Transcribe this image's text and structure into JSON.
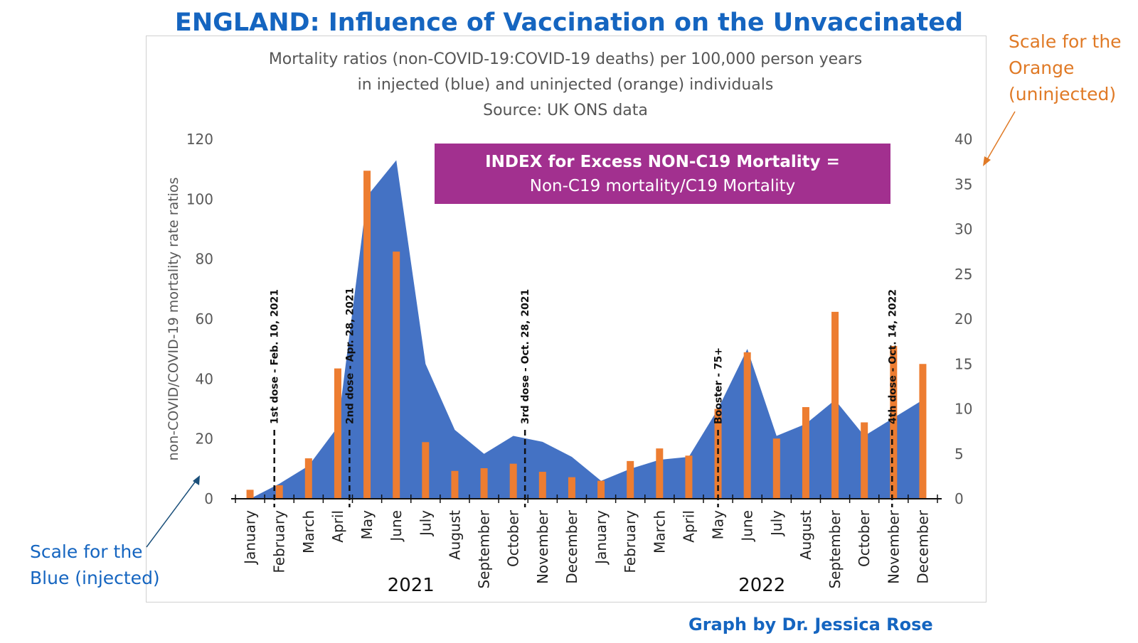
{
  "title": "ENGLAND: Influence of Vaccination on the Unvaccinated",
  "subtitle_lines": [
    "Mortality ratios (non-COVID-19:COVID-19 deaths) per 100,000 person years",
    "in injected (blue) and uninjected (orange) individuals",
    "Source: UK ONS data"
  ],
  "index_box": {
    "line1": "INDEX for Excess NON-C19 Mortality  =",
    "line2": "Non-C19 mortality/C19 Mortality",
    "color": "#a2308f"
  },
  "notes": {
    "orange_lines": [
      "Scale for the",
      "Orange",
      "(uninjected)"
    ],
    "blue_lines": [
      "Scale for the",
      "Blue (injected)"
    ]
  },
  "credit": "Graph by Dr. Jessica Rose",
  "chart_data": {
    "type": "area+bar",
    "categories": [
      "January",
      "February",
      "March",
      "April",
      "May",
      "June",
      "July",
      "August",
      "September",
      "October",
      "November",
      "December",
      "January",
      "February",
      "March",
      "April",
      "May",
      "June",
      "July",
      "August",
      "September",
      "October",
      "November",
      "December"
    ],
    "years": [
      {
        "label": "2021",
        "start": 0,
        "end": 11
      },
      {
        "label": "2022",
        "start": 12,
        "end": 23
      }
    ],
    "ylabel": "non-COVID/COVID-19 mortality rate ratios",
    "y_left": {
      "min": 0,
      "max": 120,
      "ticks": [
        0,
        20,
        40,
        60,
        80,
        100,
        120
      ]
    },
    "y_right": {
      "min": 0,
      "max": 40,
      "ticks": [
        0,
        5,
        10,
        15,
        20,
        25,
        30,
        35,
        40
      ]
    },
    "series": [
      {
        "name": "injected (blue)",
        "kind": "area",
        "axis": "left",
        "color": "#4472c4",
        "values": [
          0,
          5,
          11,
          24,
          101,
          113,
          45,
          23,
          15,
          21,
          19,
          14,
          6,
          10,
          13,
          14,
          30,
          50,
          21,
          25,
          33,
          21,
          27,
          33
        ]
      },
      {
        "name": "uninjected (orange)",
        "kind": "bar",
        "axis": "right",
        "color": "#ed7d31",
        "values": [
          1,
          1.5,
          4.5,
          14.5,
          36.5,
          27.5,
          6.3,
          3.1,
          3.4,
          3.9,
          3.0,
          2.4,
          2.0,
          4.2,
          5.6,
          4.8,
          10.0,
          16.3,
          6.7,
          10.2,
          20.8,
          8.5,
          17.0,
          15.0
        ]
      }
    ],
    "dose_markers": [
      {
        "label": "1st dose - Feb. 10, 2021",
        "position": 1.33
      },
      {
        "label": "2nd dose - Apr. 28, 2021",
        "position": 3.9
      },
      {
        "label": "3rd dose - Oct. 28, 2021",
        "position": 9.9
      },
      {
        "label": "Booster - 75+",
        "position": 16.5
      },
      {
        "label": "4th dose - Oct. 14, 2022",
        "position": 22.45
      }
    ]
  }
}
